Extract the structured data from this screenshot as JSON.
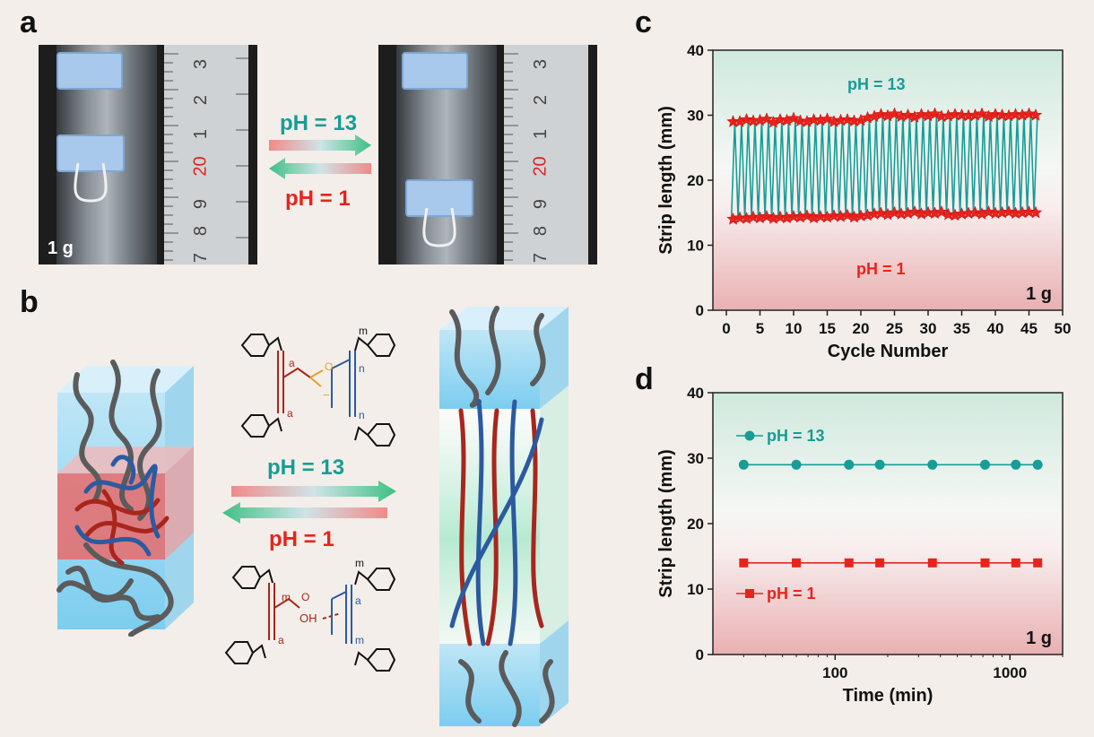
{
  "panels": {
    "a": "a",
    "b": "b",
    "c": "c",
    "d": "d"
  },
  "panel_a": {
    "sample_label": "1 g",
    "arrow_top_label": "pH = 13",
    "arrow_bottom_label": "pH = 1",
    "ruler_left": [
      "3",
      "2",
      "1",
      "20",
      "9",
      "8",
      "7"
    ],
    "ruler_right": [
      "3",
      "2",
      "1",
      "20",
      "9",
      "8",
      "7"
    ]
  },
  "panel_b": {
    "arrow_top_label": "pH = 13",
    "arrow_bottom_label": "pH = 1",
    "chem_subscripts": [
      "a",
      "n",
      "m",
      "a",
      "n",
      "m",
      "a",
      "m",
      "a",
      "m"
    ],
    "chem_groups": {
      "carboxylate": "O",
      "carboxylate_minus": "−",
      "acid_oh": "OH",
      "acid_o": "O"
    }
  },
  "colors": {
    "teal": "#179c96",
    "red": "#e8231c",
    "blue_chain": "#2c5aa0",
    "red_chain": "#a8261c",
    "gray_chain": "#5b5b5b"
  },
  "chart_data": [
    {
      "type": "line",
      "panel": "c",
      "title": "",
      "xlabel": "Cycle Number",
      "ylabel": "Strip length (mm)",
      "xlim": [
        -2,
        50
      ],
      "ylim": [
        0,
        40
      ],
      "xticks": [
        0,
        5,
        10,
        15,
        20,
        25,
        30,
        35,
        40,
        45,
        50
      ],
      "yticks": [
        0,
        10,
        20,
        30,
        40
      ],
      "annotations": {
        "top": "pH = 13",
        "bottom": "pH = 1",
        "corner": "1 g"
      },
      "series": [
        {
          "name": "pH = 13",
          "marker": "star",
          "cycles": [
            1,
            2,
            3,
            4,
            5,
            6,
            7,
            8,
            9,
            10,
            11,
            12,
            13,
            14,
            15,
            16,
            17,
            18,
            19,
            20,
            21,
            22,
            23,
            24,
            25,
            26,
            27,
            28,
            29,
            30,
            31,
            32,
            33,
            34,
            35,
            36,
            37,
            38,
            39,
            40,
            41,
            42,
            43,
            44,
            45,
            46
          ],
          "values": [
            29,
            29,
            29.3,
            29.1,
            29.2,
            29.4,
            28.9,
            29.3,
            29.2,
            29.5,
            29.1,
            29,
            29.3,
            29.2,
            29.4,
            29,
            29.2,
            29.3,
            29.1,
            29.2,
            29.6,
            29.8,
            30.1,
            29.9,
            30.2,
            29.8,
            30,
            29.7,
            30.1,
            29.9,
            30.2,
            29.8,
            29.9,
            30.1,
            30,
            29.9,
            30,
            30.2,
            29.8,
            30.1,
            30,
            29.9,
            30.1,
            30,
            30.2,
            30
          ]
        },
        {
          "name": "pH = 1",
          "marker": "star",
          "cycles": [
            1,
            2,
            3,
            4,
            5,
            6,
            7,
            8,
            9,
            10,
            11,
            12,
            13,
            14,
            15,
            16,
            17,
            18,
            19,
            20,
            21,
            22,
            23,
            24,
            25,
            26,
            27,
            28,
            29,
            30,
            31,
            32,
            33,
            34,
            35,
            36,
            37,
            38,
            39,
            40,
            41,
            42,
            43,
            44,
            45,
            46
          ],
          "values": [
            14,
            14.2,
            14.1,
            14.3,
            14.2,
            14.4,
            14.1,
            14.3,
            14.2,
            14.4,
            14.3,
            14.5,
            14.2,
            14.4,
            14.3,
            14.5,
            14.4,
            14.6,
            14.3,
            14.5,
            14.6,
            14.8,
            14.9,
            14.7,
            15,
            14.8,
            14.9,
            15.1,
            14.8,
            15,
            14.9,
            15.1,
            14.7,
            14.6,
            14.8,
            14.9,
            15,
            14.8,
            15.1,
            14.9,
            15,
            15.1,
            14.9,
            15,
            15.1,
            15
          ]
        }
      ]
    },
    {
      "type": "line",
      "panel": "d",
      "title": "",
      "xlabel": "Time (min)",
      "ylabel": "Strip length (mm)",
      "xscale": "log",
      "xlim": [
        20,
        2000
      ],
      "ylim": [
        0,
        40
      ],
      "xticks": [
        100,
        1000
      ],
      "xticklabels": [
        "100",
        "1000"
      ],
      "yticks": [
        0,
        10,
        20,
        30,
        40
      ],
      "annotations": {
        "corner": "1 g"
      },
      "series": [
        {
          "name": "pH = 13",
          "marker": "circle",
          "x": [
            30,
            60,
            120,
            180,
            360,
            720,
            1080,
            1440
          ],
          "values": [
            29,
            29,
            29,
            29,
            29,
            29,
            29,
            29
          ]
        },
        {
          "name": "pH = 1",
          "marker": "square",
          "x": [
            30,
            60,
            120,
            180,
            360,
            720,
            1080,
            1440
          ],
          "values": [
            14,
            14,
            14,
            14,
            14,
            14,
            14,
            14
          ]
        }
      ]
    }
  ]
}
